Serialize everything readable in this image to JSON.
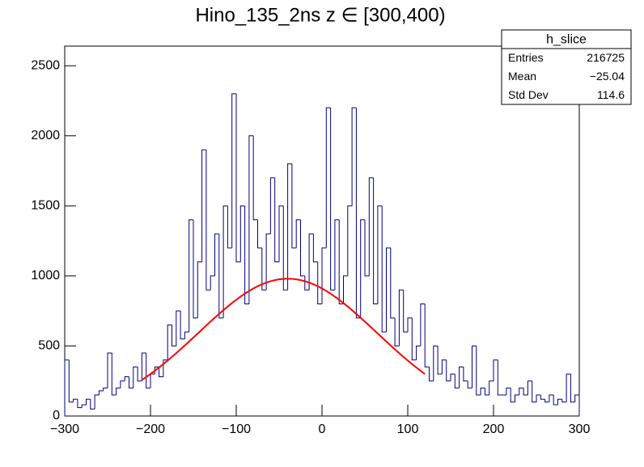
{
  "chart_data": {
    "type": "histogram",
    "title": "Hino_135_2ns z  ∈ [300,400)",
    "bins": [
      -300,
      -295,
      -290,
      -285,
      -280,
      -275,
      -270,
      -265,
      -260,
      -255,
      -250,
      -245,
      -240,
      -235,
      -230,
      -225,
      -220,
      -215,
      -210,
      -205,
      -200,
      -195,
      -190,
      -185,
      -180,
      -175,
      -170,
      -165,
      -160,
      -155,
      -150,
      -145,
      -140,
      -135,
      -130,
      -125,
      -120,
      -115,
      -110,
      -105,
      -100,
      -95,
      -90,
      -85,
      -80,
      -75,
      -70,
      -65,
      -60,
      -55,
      -50,
      -45,
      -40,
      -35,
      -30,
      -25,
      -20,
      -15,
      -10,
      -5,
      0,
      5,
      10,
      15,
      20,
      25,
      30,
      35,
      40,
      45,
      50,
      55,
      60,
      65,
      70,
      75,
      80,
      85,
      90,
      95,
      100,
      105,
      110,
      115,
      120,
      125,
      130,
      135,
      140,
      145,
      150,
      155,
      160,
      165,
      170,
      175,
      180,
      185,
      190,
      195,
      200,
      205,
      210,
      215,
      220,
      225,
      230,
      235,
      240,
      245,
      250,
      255,
      260,
      265,
      270,
      275,
      280,
      285,
      290,
      295,
      300
    ],
    "values": [
      400,
      100,
      120,
      60,
      80,
      120,
      50,
      150,
      180,
      200,
      450,
      150,
      200,
      250,
      280,
      200,
      350,
      250,
      450,
      200,
      300,
      350,
      280,
      400,
      650,
      500,
      750,
      550,
      600,
      1400,
      700,
      1100,
      1900,
      900,
      1000,
      1300,
      700,
      1500,
      1200,
      2300,
      1100,
      1500,
      800,
      2000,
      1400,
      1200,
      900,
      1300,
      1700,
      1100,
      1500,
      900,
      1800,
      1200,
      1400,
      1000,
      900,
      1300,
      1100,
      800,
      1200,
      2200,
      900,
      1400,
      800,
      1000,
      1500,
      2200,
      700,
      1400,
      1000,
      1700,
      800,
      1500,
      600,
      1200,
      700,
      500,
      900,
      600,
      700,
      400,
      500,
      800,
      350,
      250,
      500,
      300,
      400,
      250,
      300,
      200,
      350,
      250,
      200,
      500,
      150,
      200,
      150,
      250,
      400,
      150,
      150,
      200,
      100,
      150,
      200,
      150,
      250,
      100,
      150,
      120,
      100,
      150,
      80,
      120,
      100,
      300,
      100,
      150
    ],
    "color": "#000080",
    "xlim": [
      -300,
      300
    ],
    "ylim": [
      0,
      2640
    ],
    "xticks": [
      {
        "value": -300,
        "label": "−300"
      },
      {
        "value": -200,
        "label": "−200"
      },
      {
        "value": -100,
        "label": "−100"
      },
      0,
      100,
      200,
      300
    ],
    "yticks": [
      0,
      500,
      1000,
      1500,
      2000,
      2500
    ],
    "fit": {
      "constant": 980,
      "mean": -40,
      "sigma": 104,
      "range": [
        -210,
        120
      ],
      "color": "#ff0000"
    },
    "stats": {
      "title": "h_slice",
      "rows": [
        [
          "Entries",
          "216725"
        ],
        [
          "Mean",
          "−25.04"
        ],
        [
          "Std Dev",
          "114.6"
        ]
      ]
    }
  }
}
